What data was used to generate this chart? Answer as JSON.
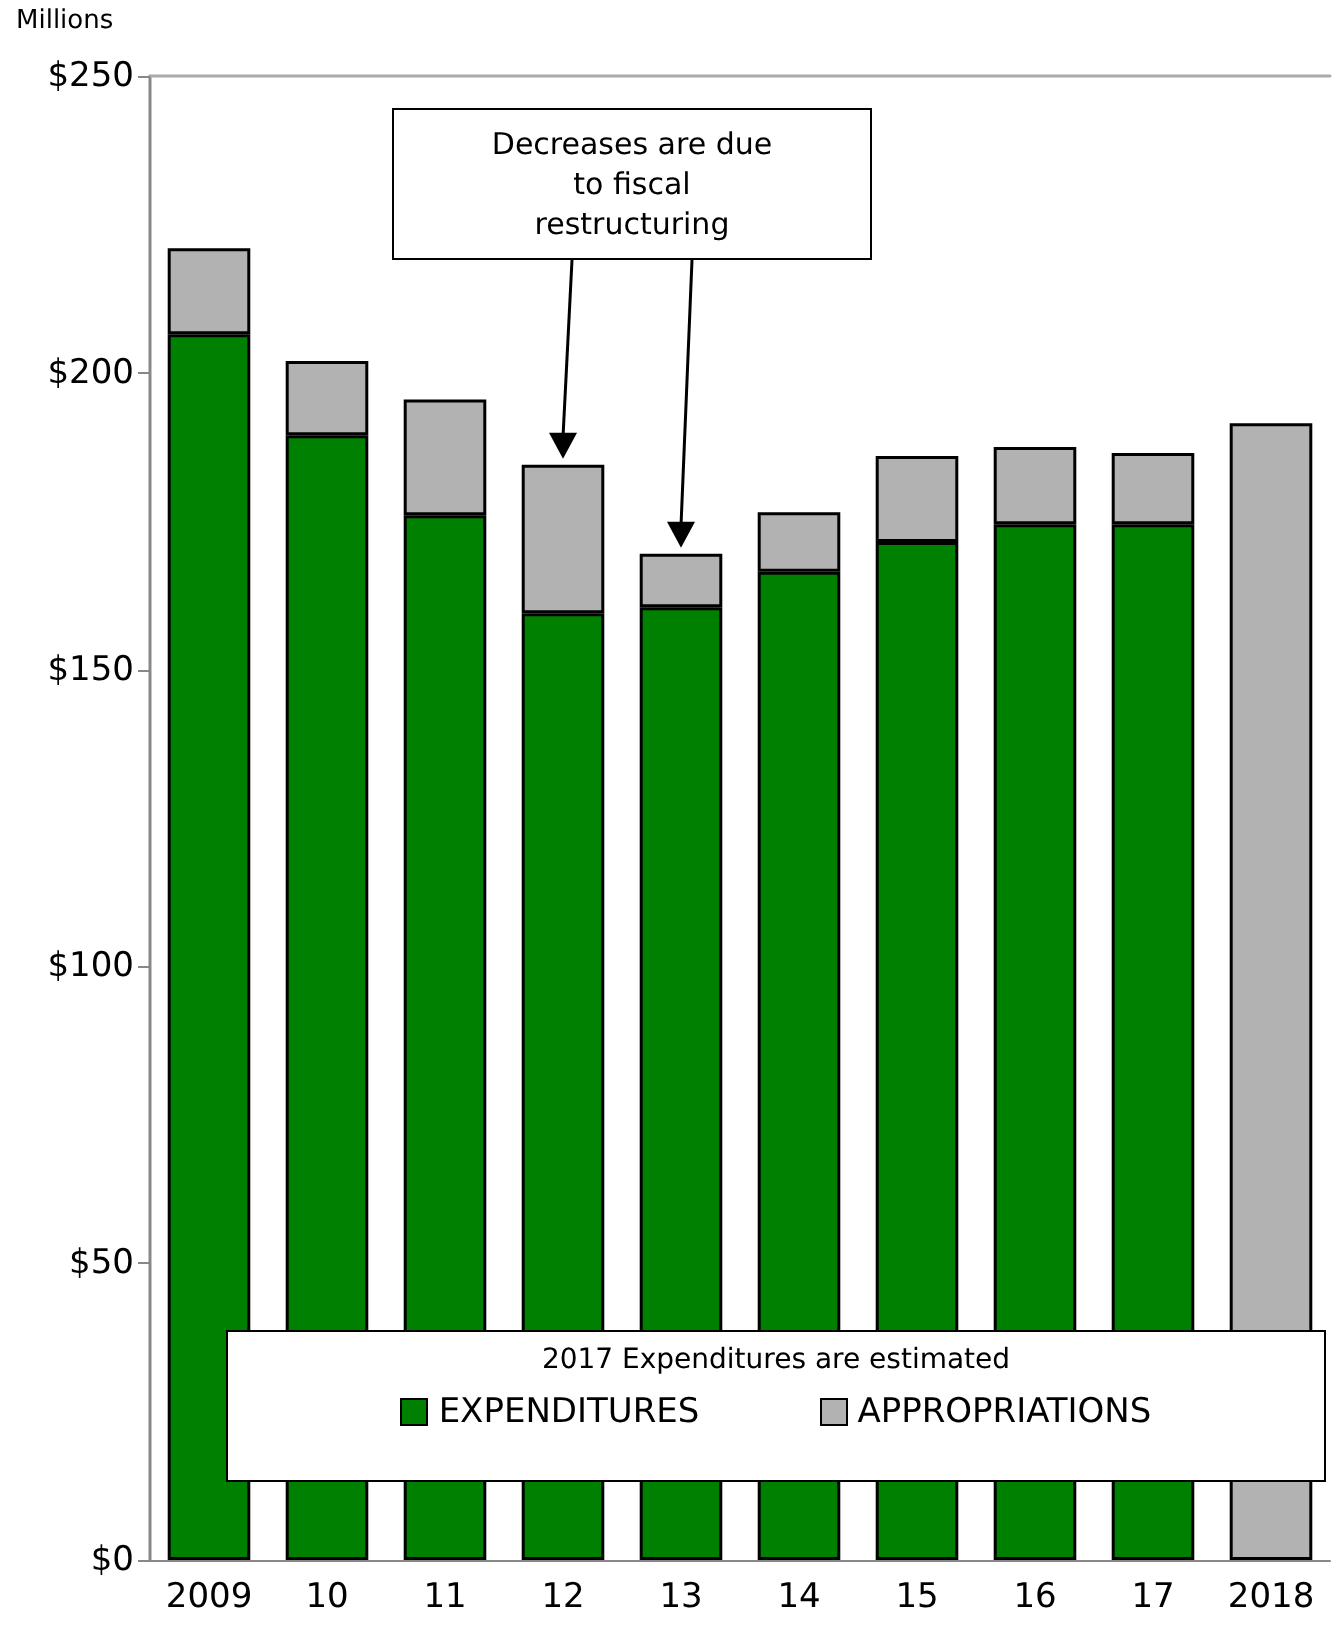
{
  "chart_data": {
    "type": "bar",
    "stacked": true,
    "ylabel": "Millions",
    "categories": [
      "2009",
      "10",
      "11",
      "12",
      "13",
      "14",
      "15",
      "16",
      "17",
      "2018"
    ],
    "series": [
      {
        "name": "EXPENDITURES",
        "color": "#008000",
        "values": [
          206.5,
          189.5,
          176,
          159.5,
          160.5,
          166.5,
          171.5,
          174.5,
          174.5,
          null
        ]
      },
      {
        "name": "APPROPRIATIONS",
        "color": "#b2b2b2",
        "values": [
          14.5,
          12.5,
          19.5,
          25,
          9,
          10,
          14.5,
          13,
          12,
          191.5
        ]
      }
    ],
    "ylim": [
      0,
      250
    ],
    "yticks": [
      {
        "value": 0,
        "label": "$0"
      },
      {
        "value": 50,
        "label": "$50"
      },
      {
        "value": 100,
        "label": "$100"
      },
      {
        "value": 150,
        "label": "$150"
      },
      {
        "value": 200,
        "label": "$200"
      },
      {
        "value": 250,
        "label": "$250"
      }
    ],
    "grid": false,
    "legend": "bottom",
    "legend_title": "2017 Expenditures are estimated",
    "annotations": [
      "Decreases are due to fiscal restructuring"
    ]
  }
}
